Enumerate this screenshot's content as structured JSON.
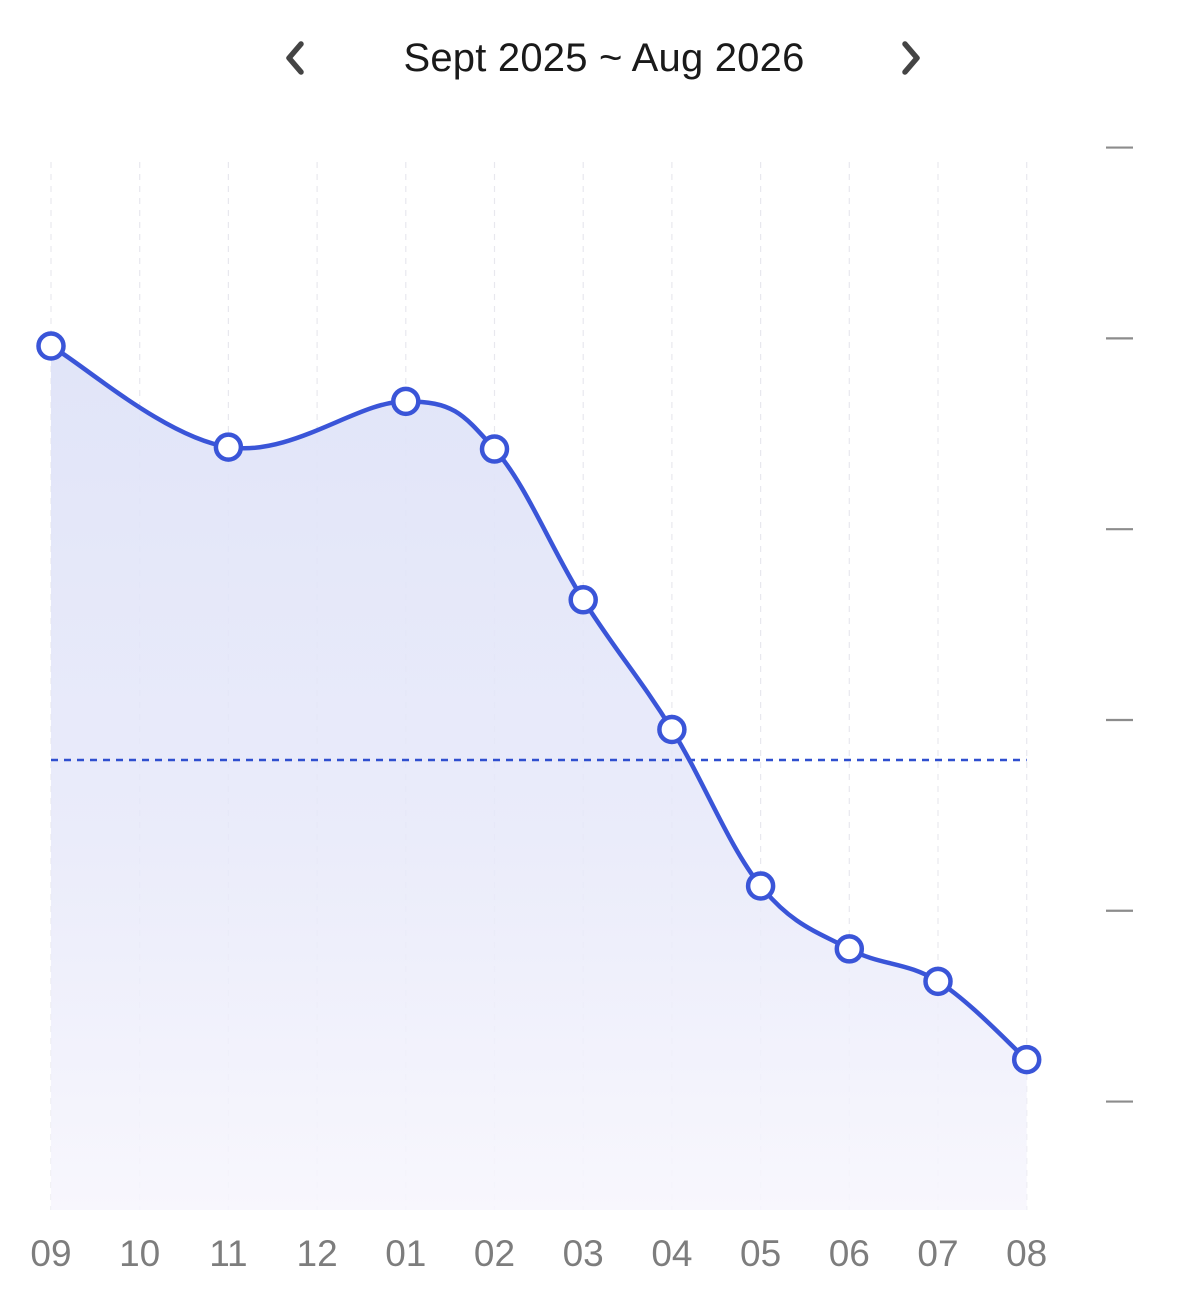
{
  "header": {
    "range_label": "Sept 2025 ~ Aug 2026",
    "prev_icon": "chevron-left-icon",
    "next_icon": "chevron-right-icon"
  },
  "chart_data": {
    "type": "area",
    "categories": [
      "09",
      "10",
      "11",
      "12",
      "01",
      "02",
      "03",
      "04",
      "05",
      "06",
      "07",
      "08"
    ],
    "series": [
      {
        "x": [
          "09",
          "11",
          "01",
          "02",
          "03",
          "04",
          "05",
          "06",
          "07",
          "08"
        ],
        "values": [
          89.6,
          84.3,
          86.7,
          84.2,
          76.3,
          69.5,
          61.3,
          58.0,
          56.3,
          52.2
        ]
      }
    ],
    "reference_line": 67.9,
    "ylim": [
      48.3,
      98.3
    ],
    "y_ticks": [
      50,
      60,
      70,
      80,
      90,
      100
    ],
    "grid": "vertical dashed",
    "colors": {
      "line": "#3a55d8",
      "fill": "#dfe3f8",
      "reference": "#2f4fcf",
      "grid": "#e8e8ee",
      "tick": "#7d7d7d"
    }
  }
}
